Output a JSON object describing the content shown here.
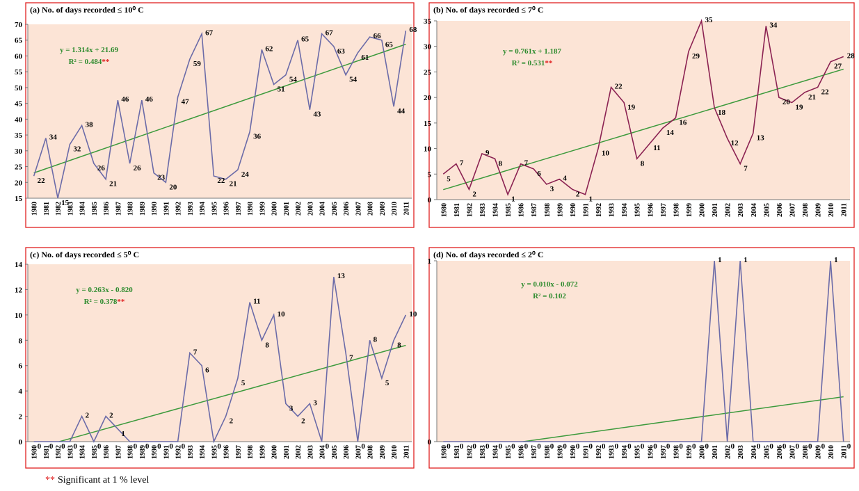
{
  "chart_data": [
    {
      "type": "line",
      "title": "(a) No. of days recorded ≤ 10⁰ C",
      "categories": [
        "1980",
        "1981",
        "1982",
        "1983",
        "1984",
        "1985",
        "1986",
        "1987",
        "1988",
        "1989",
        "1990",
        "1991",
        "1992",
        "1993",
        "1994",
        "1995",
        "1996",
        "1997",
        "1998",
        "1999",
        "2000",
        "2001",
        "2002",
        "2003",
        "2004",
        "2005",
        "2006",
        "2007",
        "2008",
        "2009",
        "2010",
        "2011"
      ],
      "values": [
        22,
        34,
        15,
        32,
        38,
        26,
        21,
        46,
        26,
        46,
        23,
        20,
        47,
        59,
        67,
        22,
        21,
        24,
        36,
        62,
        51,
        54,
        65,
        43,
        67,
        63,
        54,
        61,
        66,
        65,
        44,
        68
      ],
      "color": "#6b6ba8",
      "ylim": [
        15,
        70
      ],
      "yticks": [
        15,
        20,
        25,
        30,
        35,
        40,
        45,
        50,
        55,
        60,
        65,
        70
      ],
      "trend": {
        "equation": "y = 1.314x + 21.69",
        "r2": "R² = 0.484",
        "significance": "**",
        "values": [
          23.0,
          63.7
        ],
        "color": "#3c9a3c"
      }
    },
    {
      "type": "line",
      "title": "(b) No. of days recorded ≤ 7⁰ C",
      "categories": [
        "1980",
        "1981",
        "1982",
        "1983",
        "1984",
        "1985",
        "1986",
        "1987",
        "1988",
        "1989",
        "1990",
        "1991",
        "1992",
        "1993",
        "1994",
        "1995",
        "1996",
        "1997",
        "1998",
        "1999",
        "2000",
        "2001",
        "2002",
        "2003",
        "2004",
        "2005",
        "2006",
        "2007",
        "2008",
        "2009",
        "2010",
        "2011"
      ],
      "values": [
        5,
        7,
        2,
        9,
        8,
        1,
        7,
        6,
        3,
        4,
        2,
        1,
        10,
        22,
        19,
        8,
        11,
        14,
        16,
        29,
        35,
        18,
        12,
        7,
        13,
        34,
        20,
        19,
        21,
        22,
        27,
        28
      ],
      "color": "#8b2252",
      "ylim": [
        0,
        35
      ],
      "yticks": [
        0,
        5,
        10,
        15,
        20,
        25,
        30,
        35
      ],
      "trend": {
        "equation": "y = 0.761x + 1.187",
        "r2": "R² = 0.531",
        "significance": "**",
        "values": [
          1.95,
          25.54
        ],
        "color": "#3c9a3c"
      }
    },
    {
      "type": "line",
      "title": "(c) No. of days recorded ≤ 5⁰ C",
      "categories": [
        "1980",
        "1981",
        "1982",
        "1983",
        "1984",
        "1985",
        "1986",
        "1987",
        "1988",
        "1989",
        "1990",
        "1991",
        "1992",
        "1993",
        "1994",
        "1995",
        "1996",
        "1997",
        "1998",
        "1999",
        "2000",
        "2001",
        "2002",
        "2003",
        "2004",
        "2005",
        "2006",
        "2007",
        "2008",
        "2009",
        "2010",
        "2011"
      ],
      "values": [
        0,
        0,
        0,
        0,
        2,
        0,
        2,
        1,
        0,
        0,
        0,
        0,
        0,
        7,
        6,
        0,
        2,
        5,
        11,
        8,
        10,
        3,
        2,
        3,
        0,
        13,
        7,
        0,
        8,
        5,
        8,
        10
      ],
      "color": "#6b6ba8",
      "ylim": [
        0,
        14
      ],
      "yticks": [
        0,
        2,
        4,
        6,
        8,
        10,
        12,
        14
      ],
      "trend": {
        "equation": "y = 0.263x - 0.820",
        "r2": "R² = 0.378",
        "significance": "**",
        "values": [
          -0.557,
          7.596
        ],
        "color": "#3c9a3c"
      }
    },
    {
      "type": "line",
      "title": "(d) No. of days recorded ≤ 2⁰ C",
      "categories": [
        "1980",
        "1981",
        "1982",
        "1983",
        "1984",
        "1985",
        "1986",
        "1987",
        "1988",
        "1989",
        "1990",
        "1991",
        "1992",
        "1993",
        "1994",
        "1995",
        "1996",
        "1997",
        "1998",
        "1999",
        "2000",
        "2001",
        "2002",
        "2003",
        "2004",
        "2005",
        "2006",
        "2007",
        "2008",
        "2009",
        "2010",
        "2011"
      ],
      "values": [
        0,
        0,
        0,
        0,
        0,
        0,
        0,
        0,
        0,
        0,
        0,
        0,
        0,
        0,
        0,
        0,
        0,
        0,
        0,
        0,
        0,
        1,
        0,
        1,
        0,
        0,
        0,
        0,
        0,
        0,
        1,
        0
      ],
      "color": "#6b6ba8",
      "ylim": [
        0,
        1
      ],
      "yticks": [
        0,
        1
      ],
      "trend": {
        "equation": "y = 0.010x - 0.072",
        "r2": "R² = 0.102",
        "values": [
          -0.062,
          0.248
        ],
        "color": "#3c9a3c"
      }
    }
  ],
  "footnote": {
    "marker": "**",
    "text": "Significant at 1 % level"
  }
}
